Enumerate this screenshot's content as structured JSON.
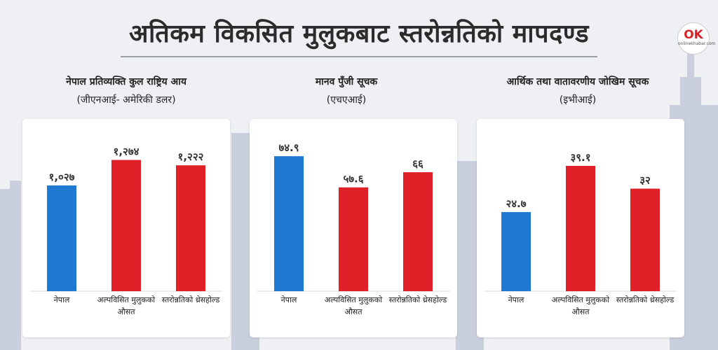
{
  "header": {
    "title": "अतिकम विकसित मुलुकबाट स्तरोन्नतिको मापदण्ड",
    "logo_mark": "OK",
    "logo_text": "onlinekhabar.com"
  },
  "colors": {
    "nepal": "#1f78d1",
    "other": "#e02027",
    "background": "#eef0f4",
    "silhouette": "#c9cfdc"
  },
  "chart_data": [
    {
      "type": "bar",
      "title": "नेपाल प्रतिव्यक्ति कुल राष्ट्रिय आय",
      "subtitle": "(जीएनआई- अमेरिकी डलर)",
      "categories": [
        "नेपाल",
        "अल्पविसित मुलुकको औसत",
        "स्तरोन्नतिको थ्रेसहोल्ड"
      ],
      "values": [
        1027,
        1274,
        1222
      ],
      "value_labels": [
        "१,०२७",
        "१,२७४",
        "१,२२२"
      ],
      "ylim": [
        0,
        1400
      ],
      "grid": false,
      "legend": "none"
    },
    {
      "type": "bar",
      "title": "मानव पुँजी सूचक",
      "subtitle": "(एचएआई)",
      "categories": [
        "नेपाल",
        "अल्पविसित मुलुकको औसत",
        "स्तरोन्नतिको थ्रेसहोल्ड"
      ],
      "values": [
        74.9,
        57.6,
        66
      ],
      "value_labels": [
        "७४.९",
        "५७.६",
        "६६"
      ],
      "ylim": [
        0,
        80
      ],
      "grid": false,
      "legend": "none"
    },
    {
      "type": "bar",
      "title": "आर्थिक तथा वातावरणीय जोखिम सूचक",
      "subtitle": "(इभीआई)",
      "categories": [
        "नेपाल",
        "अल्पविसित मुलुकको औसत",
        "स्तरोन्नतिको थ्रेसहोल्ड"
      ],
      "values": [
        24.7,
        39.1,
        32
      ],
      "value_labels": [
        "२४.७",
        "३९.१",
        "३२"
      ],
      "ylim": [
        0,
        45
      ],
      "grid": false,
      "legend": "none"
    }
  ]
}
